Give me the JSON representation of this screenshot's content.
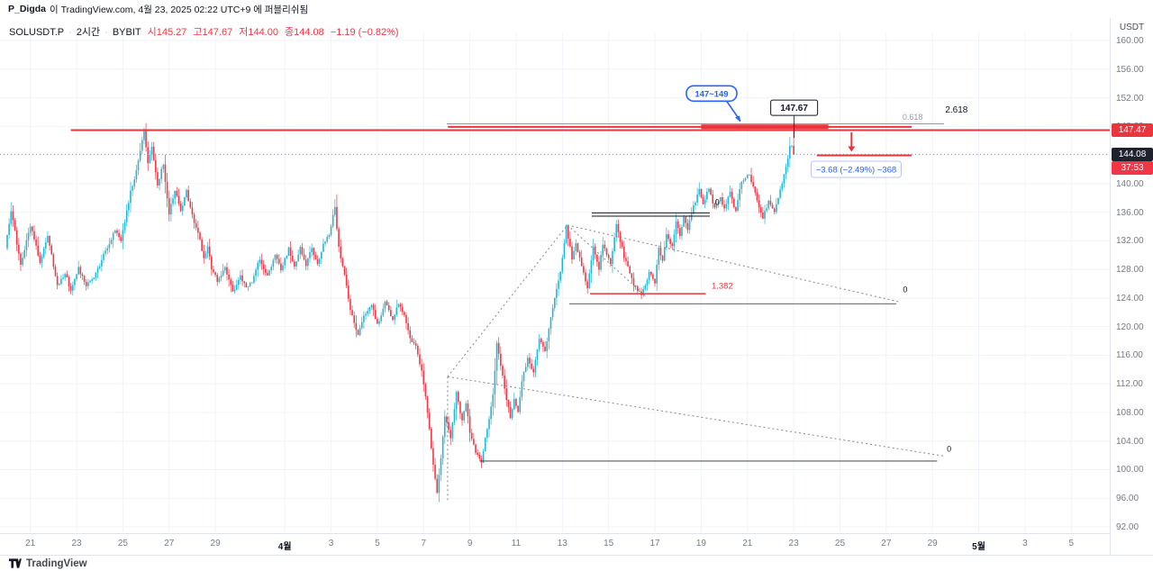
{
  "attribution": {
    "username": "P_Digda",
    "rest": "이 TradingView.com, 4월 23, 2025 02:22 UTC+9 에 퍼블리쉬됨"
  },
  "legend": {
    "symbol": "SOLUSDT.P",
    "separator": "·",
    "interval": "2시간",
    "exchange": "BYBIT",
    "open_label": "시",
    "open": "145.27",
    "high_label": "고",
    "high": "147.67",
    "low_label": "저",
    "low": "144.00",
    "close_label": "종",
    "close": "144.08",
    "change": "−1.19 (−0.82%)"
  },
  "price_axis": {
    "unit": "USDT",
    "ticks": [
      "160.00",
      "156.00",
      "152.00",
      "148.00",
      "144.00",
      "140.00",
      "136.00",
      "132.00",
      "128.00",
      "124.00",
      "120.00",
      "116.00",
      "112.00",
      "108.00",
      "104.00",
      "100.00",
      "96.00",
      "92.00"
    ],
    "tags": {
      "line_price": "147.47",
      "last_price": "144.08",
      "countdown": "37:53",
      "line_price_bg": "#e8353e",
      "last_price_bg": "#1e222d",
      "countdown_bg": "#f23645"
    }
  },
  "time_axis": {
    "labels": [
      {
        "d": 1,
        "label": "21",
        "month": false
      },
      {
        "d": 3,
        "label": "23",
        "month": false
      },
      {
        "d": 5,
        "label": "25",
        "month": false
      },
      {
        "d": 7,
        "label": "27",
        "month": false
      },
      {
        "d": 9,
        "label": "29",
        "month": false
      },
      {
        "d": 12,
        "label": "4월",
        "month": true
      },
      {
        "d": 14,
        "label": "3",
        "month": false
      },
      {
        "d": 16,
        "label": "5",
        "month": false
      },
      {
        "d": 18,
        "label": "7",
        "month": false
      },
      {
        "d": 20,
        "label": "9",
        "month": false
      },
      {
        "d": 22,
        "label": "11",
        "month": false
      },
      {
        "d": 24,
        "label": "13",
        "month": false
      },
      {
        "d": 26,
        "label": "15",
        "month": false
      },
      {
        "d": 28,
        "label": "17",
        "month": false
      },
      {
        "d": 30,
        "label": "19",
        "month": false
      },
      {
        "d": 32,
        "label": "21",
        "month": false
      },
      {
        "d": 34,
        "label": "23",
        "month": false
      },
      {
        "d": 36,
        "label": "25",
        "month": false
      },
      {
        "d": 38,
        "label": "27",
        "month": false
      },
      {
        "d": 40,
        "label": "29",
        "month": false
      },
      {
        "d": 42,
        "label": "5월",
        "month": true
      },
      {
        "d": 44,
        "label": "3",
        "month": false
      },
      {
        "d": 46,
        "label": "5",
        "month": false
      }
    ]
  },
  "footer": {
    "brand": "TradingView"
  },
  "chart_data": {
    "type": "candlestick",
    "symbol": "SOLUSDT.P",
    "interval": "2시간",
    "exchange": "BYBIT",
    "ohlc_summary": {
      "open": 145.27,
      "high": 147.67,
      "low": 144.0,
      "close": 144.08,
      "change": -1.19,
      "change_pct": -0.82
    },
    "y_axis": {
      "min": 92,
      "max": 160,
      "tick_step": 4,
      "unit": "USDT"
    },
    "candles_per_day": 12,
    "candle_count": 409,
    "colors": {
      "up": "#21b6d6",
      "down": "#f23645",
      "grid": "#f0f3fa",
      "line_red": "#e8353e",
      "blue": "#2962ff"
    },
    "price_path": [
      [
        0,
        131
      ],
      [
        3,
        136.3
      ],
      [
        8,
        128.6
      ],
      [
        13,
        134.2
      ],
      [
        18,
        129
      ],
      [
        22,
        132.8
      ],
      [
        27,
        125.8
      ],
      [
        31,
        127.6
      ],
      [
        34,
        125
      ],
      [
        38,
        128.2
      ],
      [
        42,
        125.6
      ],
      [
        47,
        127.4
      ],
      [
        52,
        130.6
      ],
      [
        57,
        133.4
      ],
      [
        60,
        132
      ],
      [
        62,
        134.8
      ],
      [
        65,
        138.8
      ],
      [
        68,
        141.6
      ],
      [
        70,
        144.5
      ],
      [
        72,
        147.2
      ],
      [
        74,
        142.6
      ],
      [
        76,
        145.4
      ],
      [
        79,
        139.8
      ],
      [
        82,
        142.8
      ],
      [
        85,
        135.8
      ],
      [
        88,
        139.2
      ],
      [
        91,
        136
      ],
      [
        94,
        139
      ],
      [
        97,
        135.4
      ],
      [
        100,
        133.2
      ],
      [
        103,
        129.4
      ],
      [
        105,
        131
      ],
      [
        107,
        128.2
      ],
      [
        110,
        126.4
      ],
      [
        114,
        128.3
      ],
      [
        118,
        124.8
      ],
      [
        122,
        127.2
      ],
      [
        125,
        125.4
      ],
      [
        128,
        126.2
      ],
      [
        132,
        129.6
      ],
      [
        136,
        127
      ],
      [
        140,
        130.2
      ],
      [
        143,
        127.8
      ],
      [
        147,
        130.8
      ],
      [
        150,
        128.4
      ],
      [
        153,
        131.2
      ],
      [
        156,
        128.6
      ],
      [
        159,
        131
      ],
      [
        162,
        128.8
      ],
      [
        165,
        131.6
      ],
      [
        168,
        133
      ],
      [
        171,
        136.6
      ],
      [
        173,
        131
      ],
      [
        176,
        127.2
      ],
      [
        179,
        122.4
      ],
      [
        183,
        118.8
      ],
      [
        186,
        121.6
      ],
      [
        190,
        123.2
      ],
      [
        193,
        120.2
      ],
      [
        197,
        123.4
      ],
      [
        201,
        121
      ],
      [
        204,
        123.2
      ],
      [
        207,
        121.8
      ],
      [
        210,
        118.4
      ],
      [
        213,
        117.4
      ],
      [
        216,
        113.6
      ],
      [
        219,
        108.2
      ],
      [
        221,
        103
      ],
      [
        224,
        96.8
      ],
      [
        226,
        101.5
      ],
      [
        228,
        107.6
      ],
      [
        231,
        104.2
      ],
      [
        234,
        110.6
      ],
      [
        237,
        106.8
      ],
      [
        239,
        109.4
      ],
      [
        241,
        105.2
      ],
      [
        244,
        102.4
      ],
      [
        247,
        100.9
      ],
      [
        249,
        104.6
      ],
      [
        251,
        107.2
      ],
      [
        253,
        110.4
      ],
      [
        255,
        117.8
      ],
      [
        257,
        114.6
      ],
      [
        259,
        111.2
      ],
      [
        262,
        107.4
      ],
      [
        264,
        109.8
      ],
      [
        266,
        108.2
      ],
      [
        268,
        112.2
      ],
      [
        271,
        115.8
      ],
      [
        274,
        113.6
      ],
      [
        277,
        118.2
      ],
      [
        280,
        116.4
      ],
      [
        283,
        121.2
      ],
      [
        285,
        124.2
      ],
      [
        288,
        127.8
      ],
      [
        291,
        134
      ],
      [
        294,
        129.6
      ],
      [
        296,
        131.8
      ],
      [
        299,
        128.4
      ],
      [
        302,
        125.6
      ],
      [
        305,
        131.4
      ],
      [
        308,
        128.1
      ],
      [
        310,
        131.6
      ],
      [
        314,
        128.8
      ],
      [
        317,
        134.4
      ],
      [
        321,
        129.8
      ],
      [
        326,
        126
      ],
      [
        330,
        124.2
      ],
      [
        334,
        127.6
      ],
      [
        337,
        126
      ],
      [
        339,
        130.8
      ],
      [
        341,
        129.3
      ],
      [
        343,
        132.8
      ],
      [
        346,
        131.3
      ],
      [
        348,
        135
      ],
      [
        350,
        132.7
      ],
      [
        352,
        135.3
      ],
      [
        354,
        133.6
      ],
      [
        357,
        136.8
      ],
      [
        360,
        139
      ],
      [
        362,
        137.3
      ],
      [
        365,
        139.3
      ],
      [
        368,
        136.6
      ],
      [
        371,
        138.3
      ],
      [
        373,
        136.3
      ],
      [
        376,
        138.7
      ],
      [
        379,
        136
      ],
      [
        382,
        140.5
      ],
      [
        386,
        141.1
      ],
      [
        390,
        137.7
      ],
      [
        393,
        135.3
      ],
      [
        396,
        137.5
      ],
      [
        399,
        136.2
      ],
      [
        402,
        139
      ],
      [
        404,
        141.4
      ],
      [
        406,
        143.6
      ],
      [
        407,
        145.3
      ],
      [
        408,
        145.27
      ],
      [
        409,
        144.08
      ]
    ]
  },
  "annotations": {
    "hlines": [
      {
        "name": "resistance-147-line",
        "p": 147.47,
        "d1": 2.75,
        "d2": 47.7,
        "color": "#e8353e",
        "w": 2
      },
      {
        "name": "fib-0618-line",
        "p": 148.35,
        "d1": 19.0,
        "d2": 40.5,
        "color": "#9598a1",
        "w": 1
      },
      {
        "name": "supply-zone-line",
        "p": 147.92,
        "d1": 19.05,
        "d2": 39.1,
        "color": "#e8353e",
        "w": 2
      },
      {
        "name": "supply-zone-thick",
        "p": 147.95,
        "d1": 30.0,
        "d2": 35.5,
        "color": "#e8353e",
        "w": 5
      },
      {
        "name": "target-line-144",
        "p": 143.95,
        "d1": 35.0,
        "d2": 39.1,
        "color": "#e8353e",
        "w": 2
      },
      {
        "name": "fib-1382-line",
        "p": 124.6,
        "d1": 25.2,
        "d2": 30.2,
        "color": "#e8353e",
        "w": 1.5
      },
      {
        "name": "equal-high-line-1",
        "p": 135.9,
        "d1": 25.27,
        "d2": 30.37,
        "color": "#131722",
        "w": 1
      },
      {
        "name": "equal-high-line-2",
        "p": 135.45,
        "d1": 25.27,
        "d2": 30.37,
        "color": "#131722",
        "w": 1
      },
      {
        "name": "mid-triangle-base",
        "p": 123.2,
        "d1": 24.3,
        "d2": 38.44,
        "color": "#2a2e39",
        "w": 0.8
      },
      {
        "name": "low-triangle-base",
        "p": 101.2,
        "d1": 20.45,
        "d2": 40.2,
        "color": "#2a2e39",
        "w": 0.8
      }
    ],
    "dlines": [
      {
        "name": "mid-triangle-hypotenuse",
        "d1": 24.22,
        "p1": 134.2,
        "d2": 38.63,
        "p2": 123.4
      },
      {
        "name": "mid-triangle-inner",
        "d1": 24.22,
        "p1": 134.2,
        "d2": 27.65,
        "p2": 124.1
      },
      {
        "name": "rise-connector",
        "d1": 19.04,
        "p1": 113.0,
        "d2": 24.22,
        "p2": 134.2
      },
      {
        "name": "low-triangle-left-edge",
        "d1": 19.04,
        "p1": 113.0,
        "d2": 19.04,
        "p2": 95.6
      },
      {
        "name": "low-triangle-hypotenuse",
        "d1": 19.04,
        "p1": 113.0,
        "d2": 40.5,
        "p2": 101.9
      }
    ],
    "dline_color": "#85878c",
    "texts": [
      {
        "name": "fib-0618-label",
        "d": 38.7,
        "p": 148.9,
        "text": "0.618",
        "color": "#9598a1",
        "size": 9
      },
      {
        "name": "fib-2618-label",
        "d": 40.55,
        "p": 149.9,
        "text": "2.618",
        "color": "#131722",
        "size": 10
      },
      {
        "name": "fib-1382-label",
        "d": 30.45,
        "p": 125.3,
        "text": "1.382",
        "color": "#e8353e",
        "size": 9.5
      },
      {
        "name": "wave-zero-top",
        "d": 30.6,
        "p": 137.0,
        "text": "0",
        "color": "#131722",
        "size": 9
      },
      {
        "name": "wave-zero-mid",
        "d": 38.72,
        "p": 124.8,
        "text": "0",
        "color": "#131722",
        "size": 9
      },
      {
        "name": "wave-zero-low",
        "d": 40.62,
        "p": 102.5,
        "text": "0",
        "color": "#131722",
        "size": 9
      }
    ],
    "arrow": {
      "d": 36.5,
      "p1": 147.15,
      "p2": 144.45,
      "color": "#e8353e"
    },
    "callout": {
      "text": "147~149",
      "d": 30.45,
      "p": 152.6,
      "tip_d": 31.7,
      "tip_p": 148.35,
      "color": "#2962ff"
    },
    "price_label": {
      "text": "147.67",
      "d": 34.02,
      "p": 150.6,
      "anchor_p": 146.4
    },
    "tooltip": {
      "text": "−3.68 (−2.49%) −368",
      "d": 36.7,
      "p": 142.0,
      "color": "#2962ff",
      "border": "#b9c4f2"
    }
  }
}
